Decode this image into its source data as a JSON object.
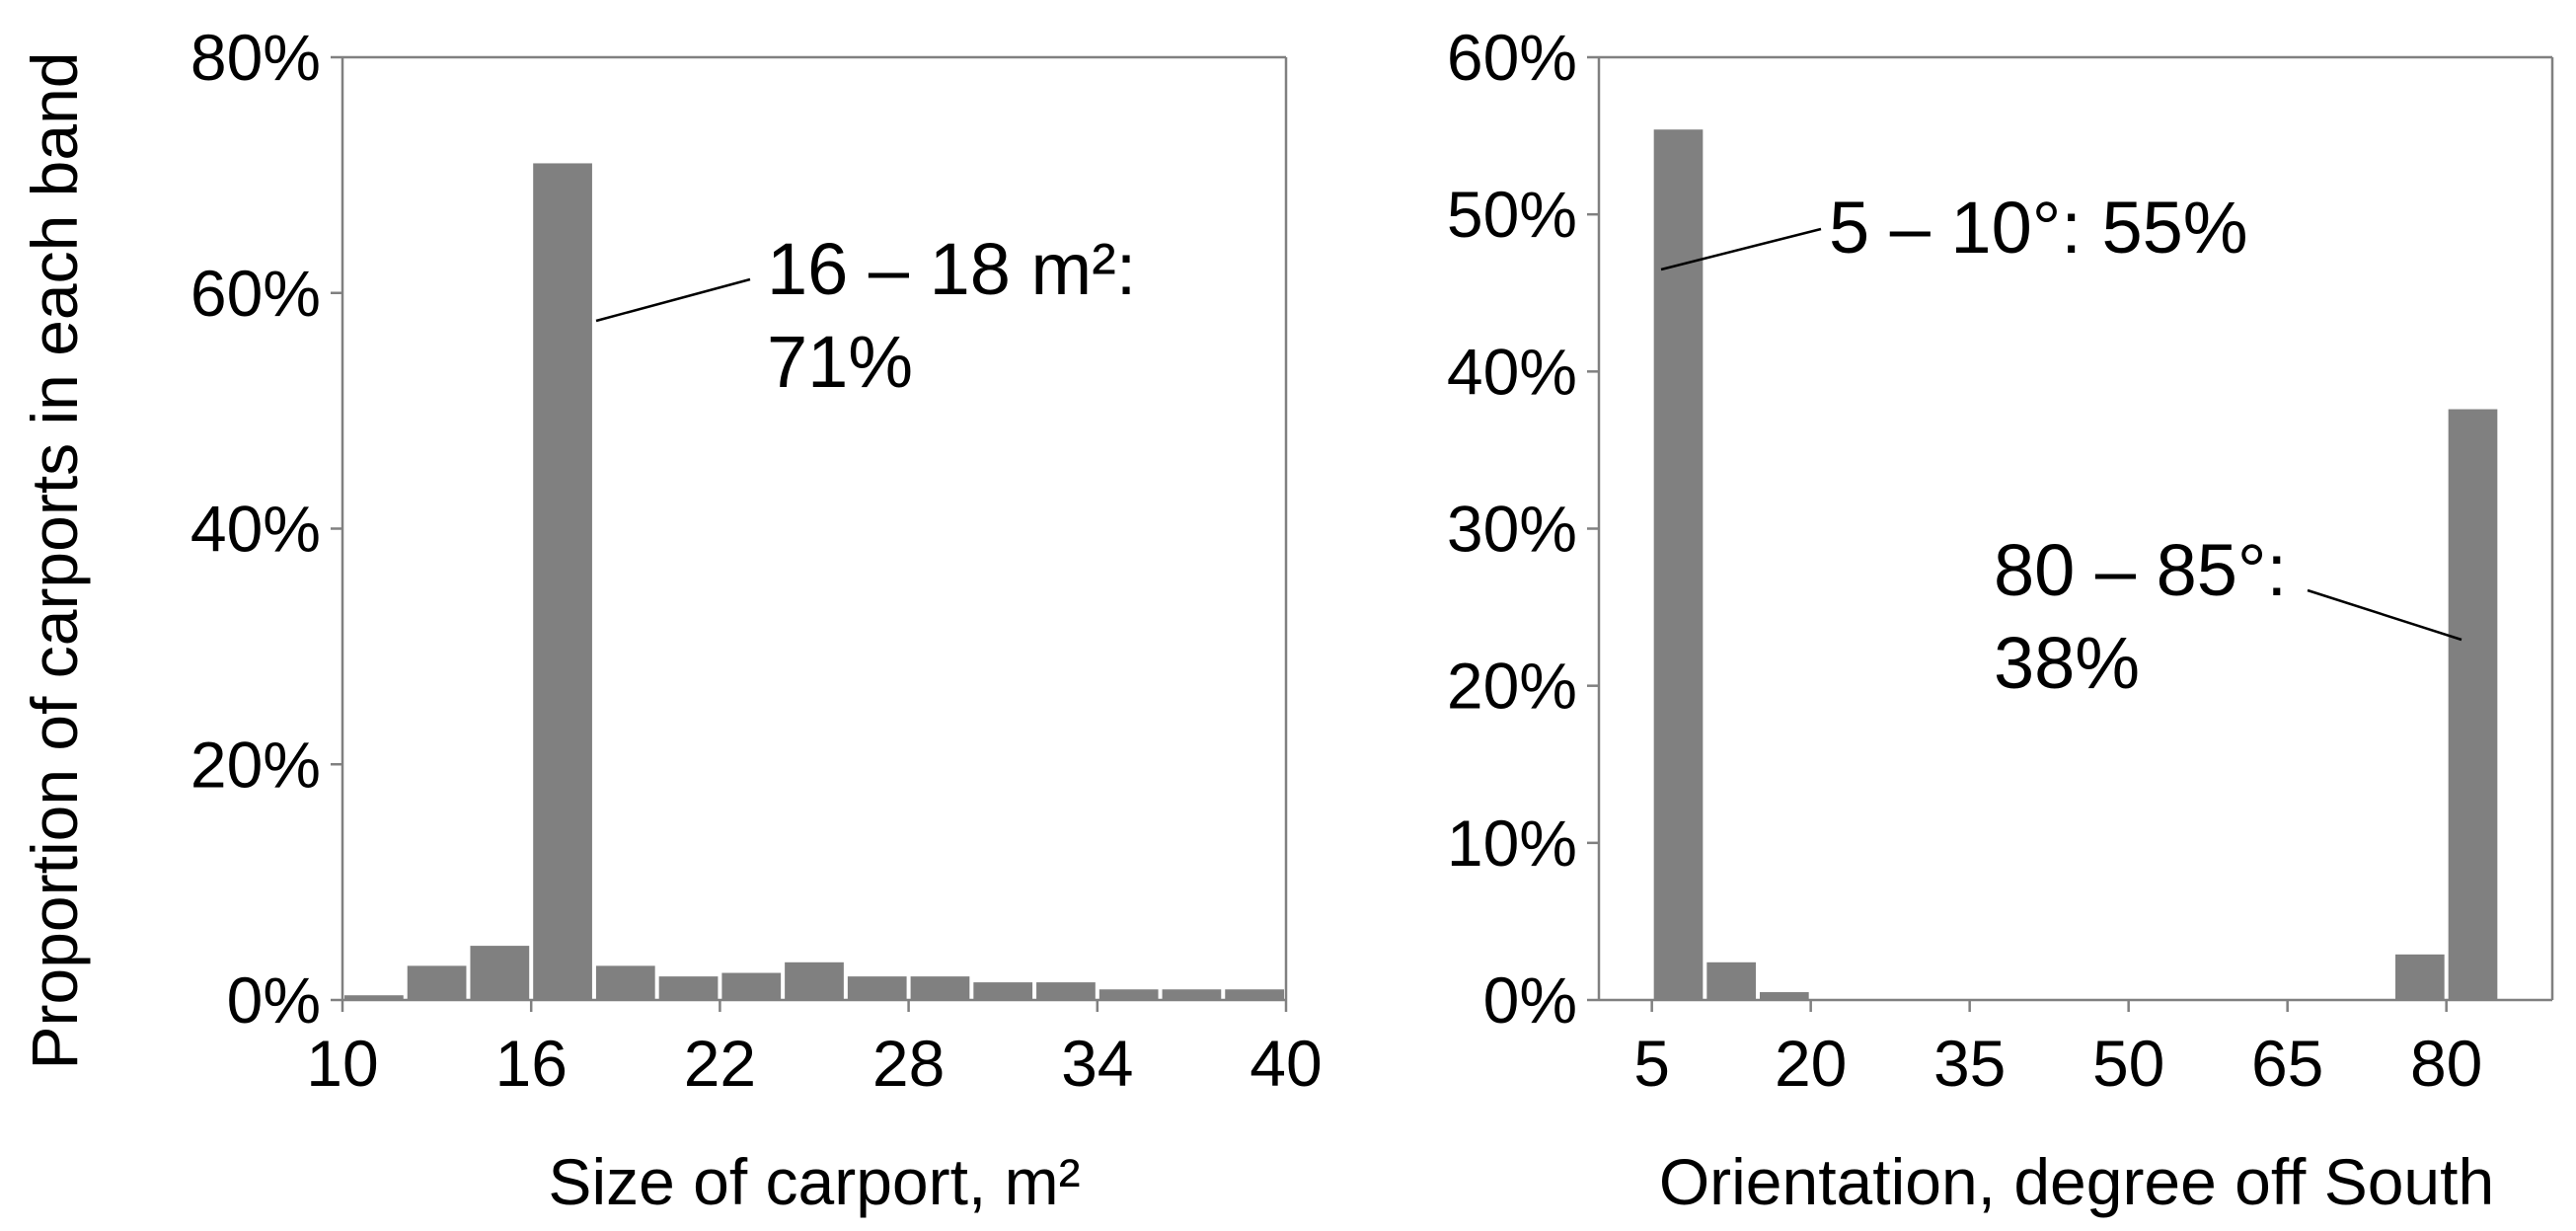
{
  "colors": {
    "bar": "#808080",
    "axis": "#808080",
    "frame": "#808080",
    "leader": "#000000",
    "text": "#000000"
  },
  "chart_data": [
    {
      "type": "bar",
      "title": "",
      "xlabel": "Size of carport, m²",
      "ylabel": "Proportion of carports in each band",
      "ylim": [
        0,
        80
      ],
      "y_ticks": [
        "0%",
        "20%",
        "40%",
        "60%",
        "80%"
      ],
      "x_ticks": [
        "10",
        "16",
        "22",
        "28",
        "34",
        "40"
      ],
      "xlim": [
        10,
        40
      ],
      "bin_width": 2,
      "series": [
        {
          "bins_start": [
            10,
            12,
            14,
            16,
            18,
            20,
            22,
            24,
            26,
            28,
            30,
            32,
            34,
            36,
            38
          ],
          "values": [
            0.4,
            2.9,
            4.6,
            71.0,
            2.9,
            2.0,
            2.3,
            3.2,
            2.0,
            2.0,
            1.5,
            1.5,
            0.9,
            0.9,
            0.9
          ]
        }
      ],
      "annotation": {
        "lines": [
          "16 – 18 m²:",
          "71%"
        ],
        "target_bin": 16,
        "target_value": 71
      },
      "grid": false,
      "legend": "none"
    },
    {
      "type": "bar",
      "title": "",
      "xlabel": "Orientation, degree off South",
      "ylabel": "",
      "ylim": [
        0,
        60
      ],
      "y_ticks": [
        "0%",
        "10%",
        "20%",
        "30%",
        "40%",
        "50%",
        "60%"
      ],
      "x_ticks": [
        "5",
        "20",
        "35",
        "50",
        "65",
        "80"
      ],
      "xlim": [
        0,
        90
      ],
      "bin_width": 5,
      "series": [
        {
          "bins_start": [
            5,
            10,
            15,
            20,
            25,
            30,
            35,
            40,
            45,
            50,
            55,
            60,
            65,
            70,
            75,
            80
          ],
          "values": [
            55.4,
            2.4,
            0.5,
            0,
            0,
            0,
            0,
            0,
            0,
            0,
            0,
            0,
            0,
            0,
            2.9,
            37.6
          ]
        }
      ],
      "annotations": [
        {
          "lines": [
            "5 – 10°: 55%"
          ],
          "target_bin": 5,
          "target_value": 55
        },
        {
          "lines": [
            "80 – 85°:",
            "38%"
          ],
          "target_bin": 80,
          "target_value": 38
        }
      ],
      "grid": false,
      "legend": "none"
    }
  ]
}
